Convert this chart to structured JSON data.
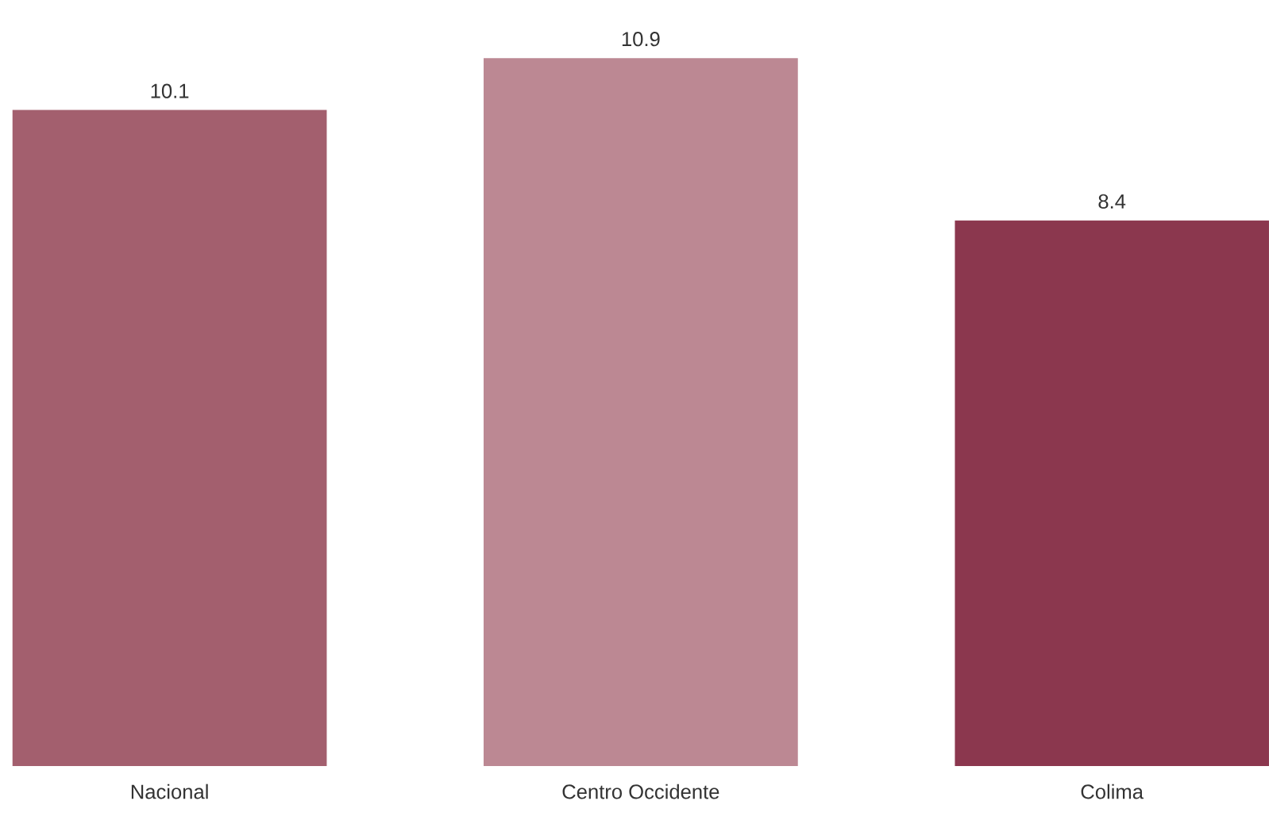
{
  "chart_data": {
    "type": "bar",
    "categories": [
      "Nacional",
      "Centro Occidente",
      "Colima"
    ],
    "values": [
      10.1,
      10.9,
      8.4
    ],
    "colors": [
      "#a35f6e",
      "#bc8893",
      "#8b374e"
    ],
    "data_labels": true
  }
}
